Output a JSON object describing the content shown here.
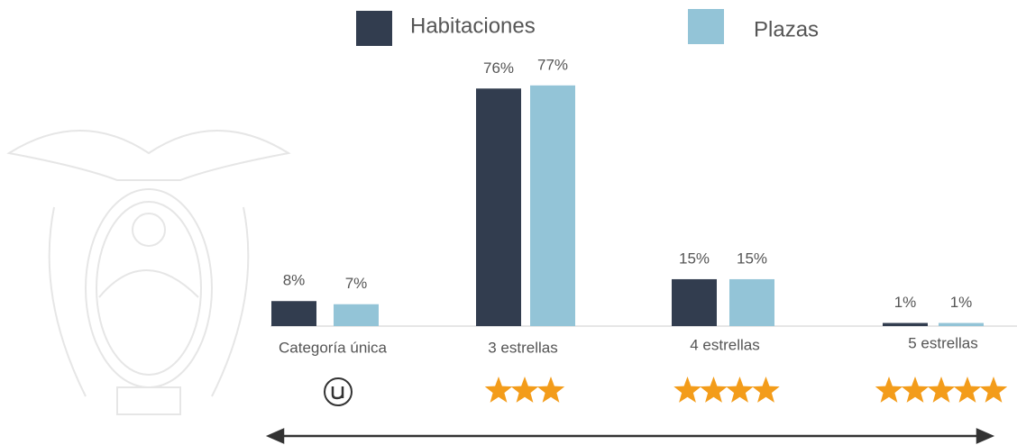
{
  "chart_data": {
    "type": "bar",
    "categories": [
      "Categoría única",
      "3 estrellas",
      "4 estrellas",
      "5 estrellas"
    ],
    "series": [
      {
        "name": "Habitaciones",
        "color": "#323d4f",
        "values": [
          8,
          76,
          15,
          1
        ],
        "value_labels": [
          "8%",
          "76%",
          "15%",
          "1%"
        ]
      },
      {
        "name": "Plazas",
        "color": "#93c4d7",
        "values": [
          7,
          77,
          15,
          1
        ],
        "value_labels": [
          "7%",
          "77%",
          "15%",
          "1%"
        ]
      }
    ],
    "legend": "top"
  }
}
